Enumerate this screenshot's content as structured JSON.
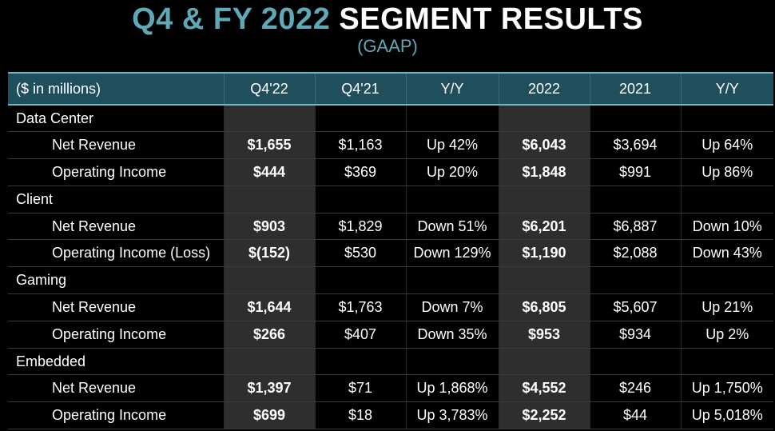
{
  "title": {
    "accent": "Q4 & FY 2022",
    "rest": "SEGMENT RESULTS"
  },
  "subtitle": "(GAAP)",
  "colors": {
    "accent": "#5fa8b8",
    "header_bg": "#1f4f5c",
    "highlight_bg": "#2e2e2e"
  },
  "table": {
    "headers": [
      "($ in millions)",
      "Q4'22",
      "Q4'21",
      "Y/Y",
      "2022",
      "2021",
      "Y/Y"
    ],
    "sections": [
      {
        "name": "Data Center",
        "rows": [
          {
            "label": "Net Revenue",
            "values": [
              "$1,655",
              "$1,163",
              "Up 42%",
              "$6,043",
              "$3,694",
              "Up 64%"
            ]
          },
          {
            "label": "Operating Income",
            "values": [
              "$444",
              "$369",
              "Up 20%",
              "$1,848",
              "$991",
              "Up 86%"
            ]
          }
        ]
      },
      {
        "name": "Client",
        "rows": [
          {
            "label": "Net Revenue",
            "values": [
              "$903",
              "$1,829",
              "Down 51%",
              "$6,201",
              "$6,887",
              "Down 10%"
            ]
          },
          {
            "label": "Operating Income (Loss)",
            "values": [
              "$(152)",
              "$530",
              "Down 129%",
              "$1,190",
              "$2,088",
              "Down 43%"
            ]
          }
        ]
      },
      {
        "name": "Gaming",
        "rows": [
          {
            "label": "Net Revenue",
            "values": [
              "$1,644",
              "$1,763",
              "Down 7%",
              "$6,805",
              "$5,607",
              "Up 21%"
            ]
          },
          {
            "label": "Operating Income",
            "values": [
              "$266",
              "$407",
              "Down 35%",
              "$953",
              "$934",
              "Up 2%"
            ]
          }
        ]
      },
      {
        "name": "Embedded",
        "rows": [
          {
            "label": "Net Revenue",
            "values": [
              "$1,397",
              "$71",
              "Up 1,868%",
              "$4,552",
              "$246",
              "Up 1,750%"
            ]
          },
          {
            "label": "Operating Income",
            "values": [
              "$699",
              "$18",
              "Up 3,783%",
              "$2,252",
              "$44",
              "Up 5,018%"
            ]
          }
        ]
      }
    ]
  }
}
